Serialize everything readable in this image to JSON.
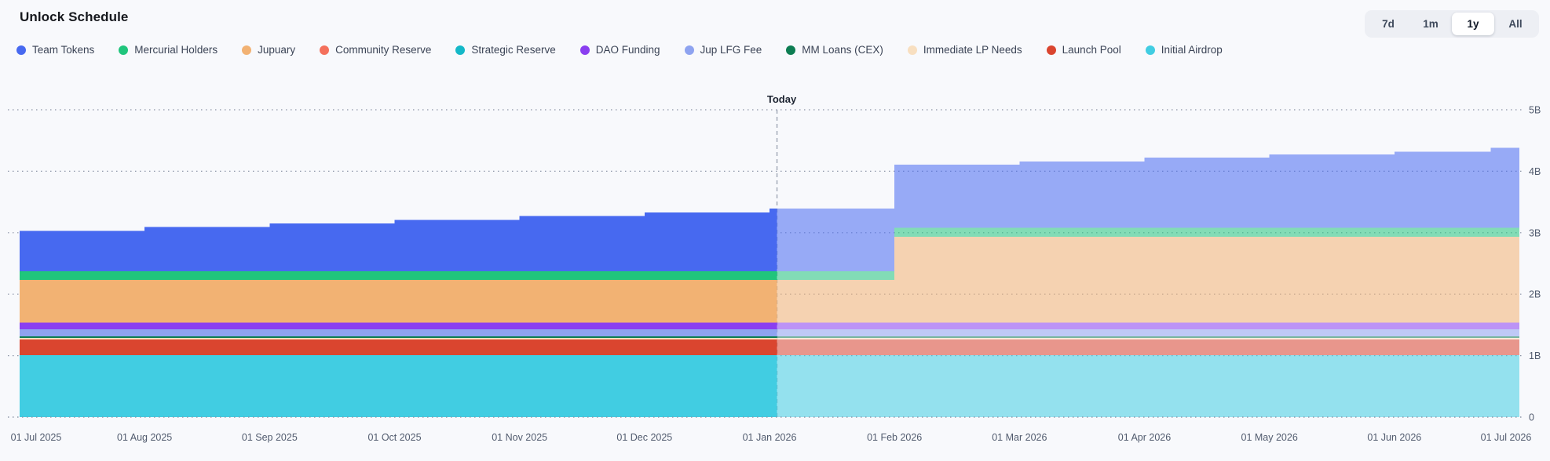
{
  "header": {
    "title": "Unlock Schedule"
  },
  "time_range": {
    "options": [
      "7d",
      "1m",
      "1y",
      "All"
    ],
    "active": "1y"
  },
  "legend": [
    {
      "label": "Team Tokens",
      "color": "#4769f0"
    },
    {
      "label": "Mercurial Holders",
      "color": "#20c57c"
    },
    {
      "label": "Jupuary",
      "color": "#f2b273"
    },
    {
      "label": "Community Reserve",
      "color": "#f4705c"
    },
    {
      "label": "Strategic Reserve",
      "color": "#14b8c8"
    },
    {
      "label": "DAO Funding",
      "color": "#8a3ff0"
    },
    {
      "label": "Jup LFG Fee",
      "color": "#8ea3f0"
    },
    {
      "label": "MM Loans (CEX)",
      "color": "#0d7d52"
    },
    {
      "label": "Immediate LP Needs",
      "color": "#f8dfc0"
    },
    {
      "label": "Launch Pool",
      "color": "#da452f"
    },
    {
      "label": "Initial Airdrop",
      "color": "#41cde2"
    }
  ],
  "colors": {
    "background": "#f8f9fc",
    "grid": "#8a93a6",
    "today_line": "#98a0b0",
    "axis_text": "#515b6e"
  },
  "chart_data": {
    "type": "area",
    "stacked": true,
    "title": "Unlock Schedule",
    "unit": "tokens (billions)",
    "ylim": [
      0,
      5
    ],
    "grid": "dotted horizontal",
    "legend_position": "top",
    "y_ticks": [
      {
        "v": 0,
        "label": "0"
      },
      {
        "v": 1,
        "label": "1B"
      },
      {
        "v": 2,
        "label": "2B"
      },
      {
        "v": 3,
        "label": "3B"
      },
      {
        "v": 4,
        "label": "4B"
      },
      {
        "v": 5,
        "label": "5B"
      }
    ],
    "x_labels": [
      "01 Jul 2025",
      "01 Aug 2025",
      "01 Sep 2025",
      "01 Oct 2025",
      "01 Nov 2025",
      "01 Dec 2025",
      "01 Jan 2026",
      "01 Feb 2026",
      "01 Mar 2026",
      "01 Apr 2026",
      "01 May 2026",
      "01 Jun 2026",
      "01 Jul 2026"
    ],
    "x_steps": [
      0,
      1,
      2,
      3,
      4,
      5,
      6,
      7,
      8,
      9,
      10,
      11,
      11.77
    ],
    "today": {
      "label": "Today",
      "t": 6.06
    },
    "projected_opacity": 0.55,
    "series_bottom_to_top": [
      {
        "name": "Initial Airdrop",
        "color": "#41cde2",
        "values": [
          1.005,
          1.005,
          1.005,
          1.005,
          1.005,
          1.005,
          1.005,
          1.005,
          1.005,
          1.005,
          1.005,
          1.005,
          1.005
        ]
      },
      {
        "name": "Launch Pool",
        "color": "#da452f",
        "values": [
          0.255,
          0.255,
          0.255,
          0.255,
          0.255,
          0.255,
          0.255,
          0.255,
          0.255,
          0.255,
          0.255,
          0.255,
          0.255
        ]
      },
      {
        "name": "Immediate LP Needs",
        "color": "#f8dfc0",
        "values": [
          0.028,
          0.028,
          0.028,
          0.028,
          0.028,
          0.028,
          0.028,
          0.028,
          0.028,
          0.028,
          0.028,
          0.028,
          0.028
        ]
      },
      {
        "name": "MM Loans (CEX)",
        "color": "#0d7d52",
        "values": [
          0.026,
          0.026,
          0.026,
          0.026,
          0.026,
          0.026,
          0.026,
          0.026,
          0.026,
          0.026,
          0.026,
          0.026,
          0.026
        ]
      },
      {
        "name": "Jup LFG Fee",
        "color": "#8ea3f0",
        "values": [
          0.115,
          0.115,
          0.115,
          0.115,
          0.115,
          0.115,
          0.115,
          0.115,
          0.115,
          0.115,
          0.115,
          0.115,
          0.115
        ]
      },
      {
        "name": "DAO Funding",
        "color": "#8a3ff0",
        "values": [
          0.105,
          0.105,
          0.105,
          0.105,
          0.105,
          0.105,
          0.105,
          0.105,
          0.105,
          0.105,
          0.105,
          0.105,
          0.105
        ]
      },
      {
        "name": "Strategic Reserve",
        "color": "#14b8c8",
        "values": [
          0,
          0,
          0,
          0,
          0,
          0,
          0,
          0,
          0,
          0,
          0,
          0,
          0
        ]
      },
      {
        "name": "Community Reserve",
        "color": "#f4705c",
        "values": [
          0,
          0,
          0,
          0,
          0,
          0,
          0,
          0,
          0,
          0,
          0,
          0,
          0
        ]
      },
      {
        "name": "Jupuary",
        "color": "#f2b273",
        "values": [
          0.695,
          0.695,
          0.695,
          0.695,
          0.695,
          0.695,
          0.695,
          1.4,
          1.4,
          1.4,
          1.4,
          1.4,
          1.4
        ]
      },
      {
        "name": "Mercurial Holders",
        "color": "#20c57c",
        "values": [
          0.145,
          0.145,
          0.145,
          0.145,
          0.145,
          0.145,
          0.145,
          0.145,
          0.145,
          0.145,
          0.145,
          0.145,
          0.145
        ]
      },
      {
        "name": "Team Tokens",
        "color": "#4769f0",
        "values": [
          0.656,
          0.716,
          0.776,
          0.836,
          0.896,
          0.956,
          1.016,
          1.031,
          1.081,
          1.141,
          1.191,
          1.241,
          1.301
        ]
      }
    ],
    "totals_by_month": [
      3.03,
      3.09,
      3.15,
      3.21,
      3.27,
      3.33,
      3.39,
      4.11,
      4.16,
      4.22,
      4.27,
      4.32,
      4.38
    ]
  }
}
